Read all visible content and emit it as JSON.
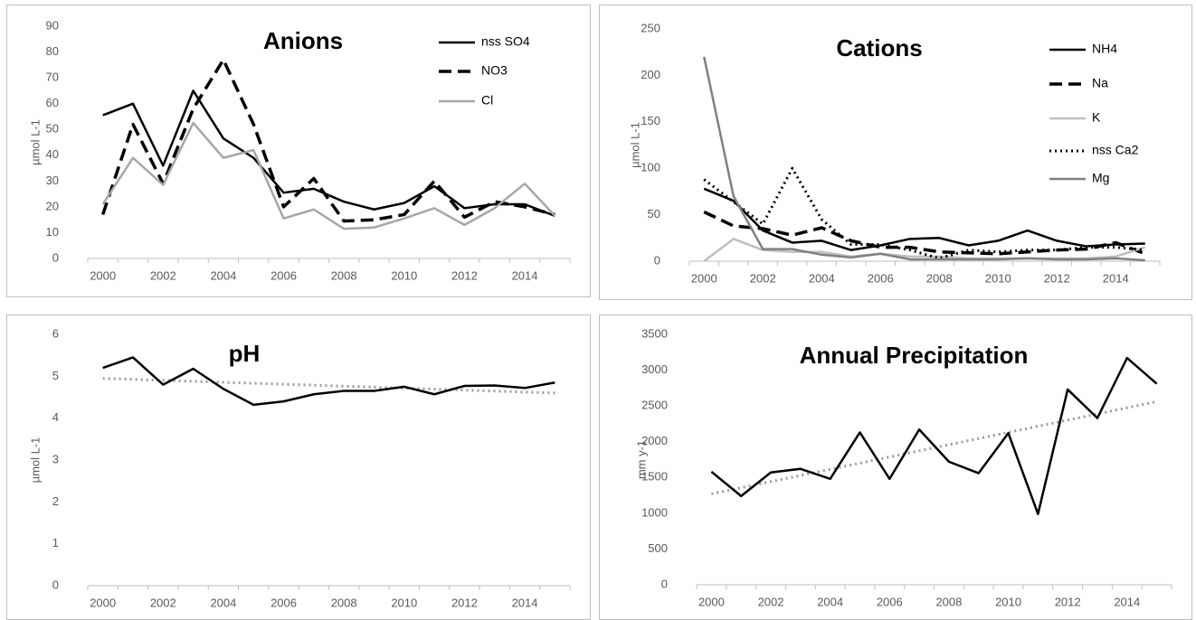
{
  "chart_data": [
    {
      "type": "line",
      "title": "Anions",
      "y_label": "µmol L-1",
      "x": [
        2000,
        2001,
        2002,
        2003,
        2004,
        2005,
        2006,
        2007,
        2008,
        2009,
        2010,
        2011,
        2012,
        2013,
        2014,
        2015
      ],
      "xlim": [
        1999.5,
        2015.5
      ],
      "xticks": [
        2000,
        2002,
        2004,
        2006,
        2008,
        2010,
        2012,
        2014
      ],
      "ylim": [
        0,
        90
      ],
      "yticks": [
        0,
        10,
        20,
        30,
        40,
        50,
        60,
        70,
        80,
        90
      ],
      "legend": "right",
      "series": [
        {
          "name": "nss SO4",
          "color": "#000000",
          "style": "solid",
          "values": [
            55.5,
            60,
            36,
            65,
            46.5,
            39,
            25.5,
            27,
            22,
            19,
            21.5,
            28,
            19.5,
            21,
            21,
            16.5
          ]
        },
        {
          "name": "NO3",
          "color": "#000000",
          "style": "dashed",
          "values": [
            17,
            52,
            29,
            58,
            77,
            52,
            20,
            31,
            14.5,
            15,
            17,
            30,
            16,
            22,
            20,
            17
          ]
        },
        {
          "name": "Cl",
          "color": "#a6a6a6",
          "style": "solid",
          "values": [
            21,
            39,
            28.5,
            52.5,
            39,
            42,
            15.5,
            19,
            11.5,
            12,
            15.5,
            19.5,
            13,
            19.5,
            29,
            16.5
          ]
        }
      ]
    },
    {
      "type": "line",
      "title": "Cations",
      "y_label": "µmol L-1",
      "x": [
        2000,
        2001,
        2002,
        2003,
        2004,
        2005,
        2006,
        2007,
        2008,
        2009,
        2010,
        2011,
        2012,
        2013,
        2014,
        2015
      ],
      "xlim": [
        1999.5,
        2015.5
      ],
      "xticks": [
        2000,
        2002,
        2004,
        2006,
        2008,
        2010,
        2012,
        2014
      ],
      "ylim": [
        0,
        250
      ],
      "yticks": [
        0,
        50,
        100,
        150,
        200,
        250
      ],
      "legend": "right",
      "series": [
        {
          "name": "NH4",
          "color": "#000000",
          "style": "solid",
          "values": [
            78,
            65,
            33,
            20,
            22,
            12,
            17,
            24,
            25,
            17,
            22,
            33,
            22,
            16,
            18,
            19
          ]
        },
        {
          "name": "Na",
          "color": "#000000",
          "style": "dashed",
          "values": [
            53,
            38,
            35,
            28,
            36,
            22,
            15,
            15,
            10,
            9,
            8,
            10,
            12,
            13,
            20,
            8
          ]
        },
        {
          "name": "K",
          "color": "#bfbfbf",
          "style": "solid",
          "values": [
            0,
            24,
            12,
            10,
            10,
            5,
            8,
            5,
            5,
            3,
            3,
            3,
            3,
            3,
            5,
            15
          ]
        },
        {
          "name": "nss Ca2",
          "color": "#000000",
          "style": "dotted",
          "values": [
            88,
            64,
            40,
            100,
            45,
            18,
            18,
            12,
            3,
            12,
            10,
            12,
            12,
            15,
            15,
            12
          ]
        },
        {
          "name": "Mg",
          "color": "#808080",
          "style": "solid",
          "values": [
            220,
            70,
            13,
            13,
            7,
            4,
            8,
            2,
            2,
            2,
            2,
            3,
            2,
            2,
            3,
            1
          ]
        }
      ]
    },
    {
      "type": "line",
      "title": "pH",
      "y_label": "µmol L-1",
      "x": [
        2000,
        2001,
        2002,
        2003,
        2004,
        2005,
        2006,
        2007,
        2008,
        2009,
        2010,
        2011,
        2012,
        2013,
        2014,
        2015
      ],
      "xlim": [
        1999.5,
        2015.5
      ],
      "xticks": [
        2000,
        2002,
        2004,
        2006,
        2008,
        2010,
        2012,
        2014
      ],
      "ylim": [
        0,
        6
      ],
      "yticks": [
        0,
        1,
        2,
        3,
        4,
        5,
        6
      ],
      "series": [
        {
          "color": "#000000",
          "style": "solid",
          "values": [
            5.2,
            5.45,
            4.8,
            5.18,
            4.7,
            4.32,
            4.4,
            4.57,
            4.65,
            4.65,
            4.75,
            4.57,
            4.77,
            4.78,
            4.72,
            4.85
          ]
        }
      ],
      "trend": {
        "x": [
          2000,
          2015
        ],
        "values": [
          4.95,
          4.6
        ],
        "color": "#999999",
        "style": "dotted"
      }
    },
    {
      "type": "line",
      "title": "Annual Precipitation",
      "y_label": "mm y-1",
      "x": [
        2000,
        2001,
        2002,
        2003,
        2004,
        2005,
        2006,
        2007,
        2008,
        2009,
        2010,
        2011,
        2012,
        2013,
        2014,
        2015
      ],
      "xlim": [
        1999.5,
        2015.5
      ],
      "xticks": [
        2000,
        2002,
        2004,
        2006,
        2008,
        2010,
        2012,
        2014
      ],
      "ylim": [
        0,
        3500
      ],
      "yticks": [
        0,
        500,
        1000,
        1500,
        2000,
        2500,
        3000,
        3500
      ],
      "series": [
        {
          "color": "#000000",
          "style": "solid",
          "values": [
            1580,
            1240,
            1570,
            1620,
            1480,
            2130,
            1480,
            2170,
            1720,
            1560,
            2120,
            990,
            2730,
            2330,
            3170,
            2810
          ]
        }
      ],
      "trend": {
        "x": [
          2000,
          2015
        ],
        "values": [
          1270,
          2560
        ],
        "color": "#999999",
        "style": "dotted"
      }
    }
  ]
}
